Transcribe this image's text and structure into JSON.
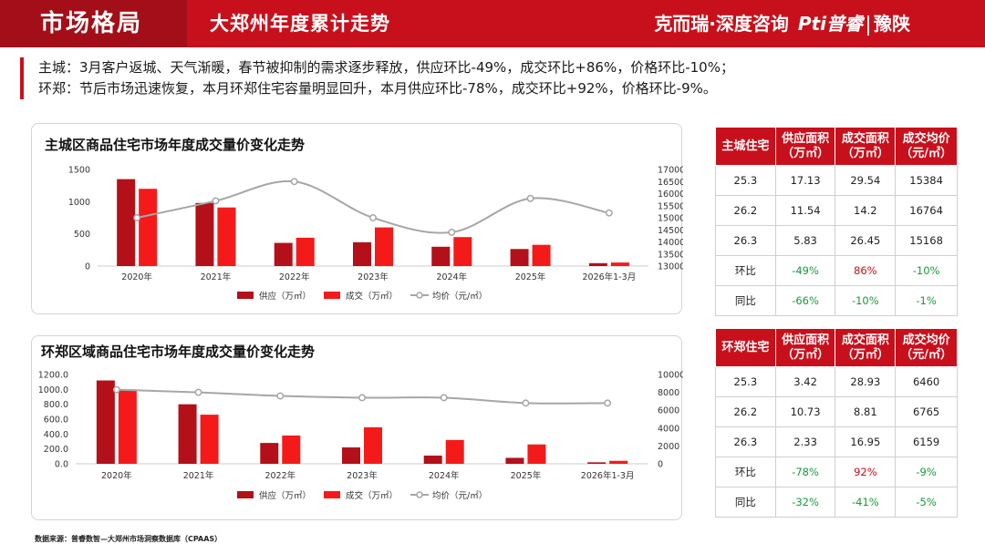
{
  "header": {
    "section_title": "市场格局",
    "subtitle": "大郑州年度累计走势",
    "brand": "克而瑞·深度咨询",
    "logo": "Pti普睿",
    "region": "豫陕"
  },
  "summary": {
    "line1": "主城：3月客户返城、天气渐暖，春节被抑制的需求逐步释放，供应环比-49%，成交环比+86%，价格环比-10%；",
    "line2": "环郑：节后市场迅速恢复，本月环郑住宅容量明显回升，本月供应环比-78%，成交环比+92%，价格环比-9%。"
  },
  "colors": {
    "supply": "#b3101a",
    "deal": "#f51a1a",
    "price": "#a6a6a6",
    "table_header": "#c8101c",
    "up": "#c8101c",
    "down": "#1a9a3a"
  },
  "chart_data": [
    {
      "type": "bar",
      "title": "主城区商品住宅市场年度成交量价变化走势",
      "categories": [
        "2020年",
        "2021年",
        "2022年",
        "2023年",
        "2024年",
        "2025年",
        "2026年1-3月"
      ],
      "series": [
        {
          "name": "供应（万㎡）",
          "kind": "bar",
          "axis": "left",
          "values": [
            1350,
            980,
            360,
            370,
            300,
            265,
            45
          ]
        },
        {
          "name": "成交（万㎡）",
          "kind": "bar",
          "axis": "left",
          "values": [
            1200,
            910,
            440,
            600,
            450,
            330,
            55
          ]
        },
        {
          "name": "均价（元/㎡）",
          "kind": "line",
          "axis": "right",
          "values": [
            15000,
            15700,
            16500,
            15000,
            14400,
            15800,
            15200
          ]
        }
      ],
      "y_left": {
        "min": 0,
        "max": 1500,
        "ticks": [
          0,
          500,
          1000,
          1500
        ]
      },
      "y_right": {
        "min": 13000,
        "max": 17000,
        "ticks": [
          13000,
          13500,
          14000,
          14500,
          15000,
          15500,
          16000,
          16500,
          17000
        ]
      },
      "legend_position": "bottom"
    },
    {
      "type": "bar",
      "title": "环郑区域商品住宅市场年度成交量价变化走势",
      "categories": [
        "2020年",
        "2021年",
        "2022年",
        "2023年",
        "2024年",
        "2025年",
        "2026年1-3月"
      ],
      "series": [
        {
          "name": "供应（万㎡）",
          "kind": "bar",
          "axis": "left",
          "values": [
            1120,
            800,
            280,
            220,
            110,
            80,
            20
          ]
        },
        {
          "name": "成交（万㎡）",
          "kind": "bar",
          "axis": "left",
          "values": [
            1000,
            660,
            380,
            490,
            320,
            260,
            40
          ]
        },
        {
          "name": "均价（元/㎡）",
          "kind": "line",
          "axis": "right",
          "values": [
            8300,
            8000,
            7600,
            7400,
            7400,
            6800,
            6800
          ]
        }
      ],
      "y_left": {
        "min": 0,
        "max": 1200,
        "ticks": [
          "0.0",
          "200.0",
          "400.0",
          "600.0",
          "800.0",
          "1000.0",
          "1200.0"
        ]
      },
      "y_right": {
        "min": 0,
        "max": 10000,
        "ticks": [
          0,
          2000,
          4000,
          6000,
          8000,
          10000
        ]
      },
      "legend_position": "bottom"
    }
  ],
  "table_main": {
    "headers": [
      "主城住宅",
      "供应面积（万㎡）",
      "成交面积（万㎡）",
      "成交均价（元/㎡）"
    ],
    "header_lines": [
      [
        "主城住宅"
      ],
      [
        "供应面积",
        "（万㎡）"
      ],
      [
        "成交面积",
        "（万㎡）"
      ],
      [
        "成交均价",
        "（元/㎡）"
      ]
    ],
    "rows": [
      {
        "cells": [
          "25.3",
          "17.13",
          "29.54",
          "15384"
        ],
        "kind": [
          "",
          "",
          "",
          ""
        ]
      },
      {
        "cells": [
          "26.2",
          "11.54",
          "14.2",
          "16764"
        ],
        "kind": [
          "",
          "",
          "",
          ""
        ]
      },
      {
        "cells": [
          "26.3",
          "5.83",
          "26.45",
          "15168"
        ],
        "kind": [
          "",
          "",
          "",
          ""
        ]
      },
      {
        "cells": [
          "环比",
          "-49%",
          "86%",
          "-10%"
        ],
        "kind": [
          "",
          "dn",
          "up",
          "dn"
        ]
      },
      {
        "cells": [
          "同比",
          "-66%",
          "-10%",
          "-1%"
        ],
        "kind": [
          "",
          "dn",
          "dn",
          "dn"
        ]
      }
    ]
  },
  "table_ring": {
    "headers": [
      "环郑住宅",
      "供应面积（万㎡）",
      "成交面积（万㎡）",
      "成交均价（元/㎡）"
    ],
    "header_lines": [
      [
        "环郑住宅"
      ],
      [
        "供应面积",
        "（万㎡）"
      ],
      [
        "成交面积",
        "（万㎡）"
      ],
      [
        "成交均价",
        "（元/㎡）"
      ]
    ],
    "rows": [
      {
        "cells": [
          "25.3",
          "3.42",
          "28.93",
          "6460"
        ],
        "kind": [
          "",
          "",
          "",
          ""
        ]
      },
      {
        "cells": [
          "26.2",
          "10.73",
          "8.81",
          "6765"
        ],
        "kind": [
          "",
          "",
          "",
          ""
        ]
      },
      {
        "cells": [
          "26.3",
          "2.33",
          "16.95",
          "6159"
        ],
        "kind": [
          "",
          "",
          "",
          ""
        ]
      },
      {
        "cells": [
          "环比",
          "-78%",
          "92%",
          "-9%"
        ],
        "kind": [
          "",
          "dn",
          "up",
          "dn"
        ]
      },
      {
        "cells": [
          "同比",
          "-32%",
          "-41%",
          "-5%"
        ],
        "kind": [
          "",
          "dn",
          "dn",
          "dn"
        ]
      }
    ]
  },
  "footer": {
    "source": "数据来源：普睿数智—大郑州市场洞察数据库（CPAAS）"
  }
}
